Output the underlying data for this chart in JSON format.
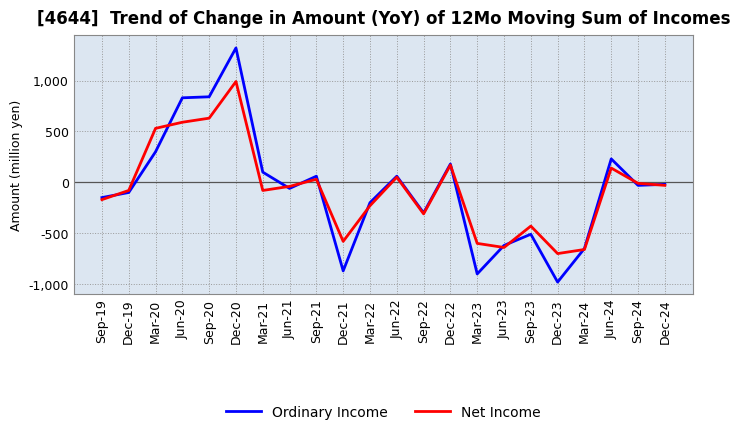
{
  "title": "[4644]  Trend of Change in Amount (YoY) of 12Mo Moving Sum of Incomes",
  "ylabel": "Amount (million yen)",
  "background_color": "#ffffff",
  "plot_bg_color": "#dce6f1",
  "grid_color": "#999999",
  "x_labels": [
    "Sep-19",
    "Dec-19",
    "Mar-20",
    "Jun-20",
    "Sep-20",
    "Dec-20",
    "Mar-21",
    "Jun-21",
    "Sep-21",
    "Dec-21",
    "Mar-22",
    "Jun-22",
    "Sep-22",
    "Dec-22",
    "Mar-23",
    "Jun-23",
    "Sep-23",
    "Dec-23",
    "Mar-24",
    "Jun-24",
    "Sep-24",
    "Dec-24"
  ],
  "ordinary_income": [
    -150,
    -100,
    300,
    830,
    840,
    1320,
    100,
    -60,
    60,
    -870,
    -200,
    60,
    -300,
    180,
    -900,
    -620,
    -510,
    -980,
    -650,
    230,
    -30,
    -20
  ],
  "net_income": [
    -170,
    -80,
    530,
    590,
    630,
    990,
    -80,
    -40,
    30,
    -580,
    -230,
    50,
    -310,
    170,
    -600,
    -640,
    -430,
    -700,
    -660,
    140,
    -10,
    -30
  ],
  "ordinary_income_color": "#0000ff",
  "net_income_color": "#ff0000",
  "ylim": [
    -1100,
    1450
  ],
  "yticks": [
    -1000,
    -500,
    0,
    500,
    1000
  ],
  "legend_ordinary": "Ordinary Income",
  "legend_net": "Net Income",
  "title_fontsize": 12,
  "axis_fontsize": 9,
  "legend_fontsize": 10,
  "linewidth": 2.0
}
